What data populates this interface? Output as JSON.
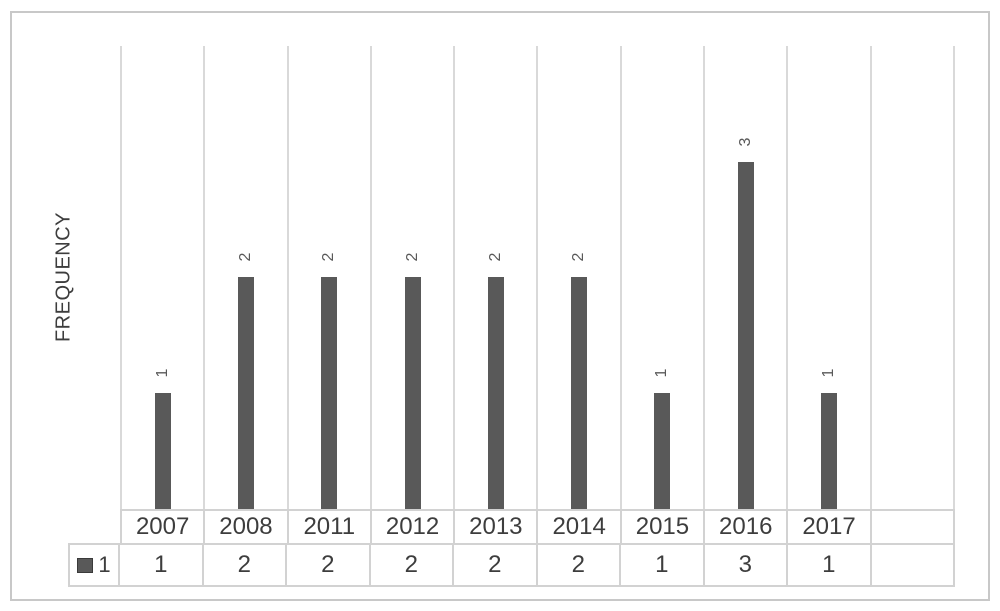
{
  "chart_data": {
    "type": "bar",
    "title": "",
    "xlabel": "",
    "ylabel": "FREQUENCY",
    "categories": [
      "2007",
      "2008",
      "2011",
      "2012",
      "2013",
      "2014",
      "2015",
      "2016",
      "2017"
    ],
    "series": [
      {
        "name": "1",
        "values": [
          1,
          2,
          2,
          2,
          2,
          2,
          1,
          3,
          1
        ]
      }
    ],
    "ylim": [
      0,
      4
    ],
    "grid": "vertical-gridlines-only",
    "data_label_rotation_deg": -90,
    "legend_position": "bottom-table-left",
    "trailing_empty_column": true,
    "colors": {
      "bar": "#595959",
      "gridline": "#d9d9d9",
      "table_border": "#d2d2d2",
      "frame_border": "#c8c8c8",
      "axis_text": "#3d3d3d",
      "data_label_text": "#595959"
    }
  },
  "legend": {
    "series_label": "1",
    "swatch_color": "#595959"
  }
}
